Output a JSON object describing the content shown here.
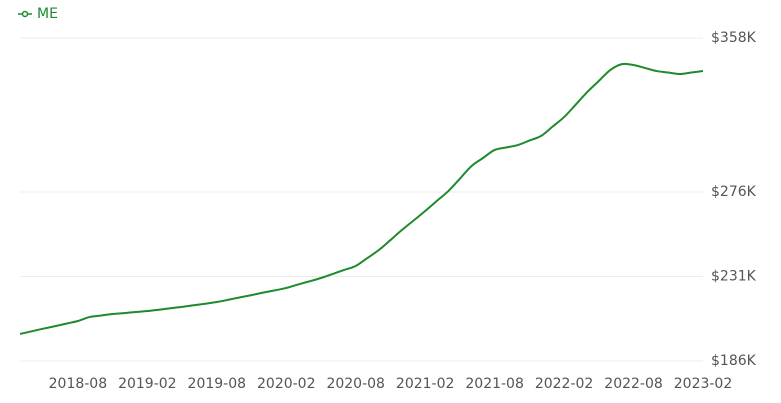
{
  "chart_data": {
    "type": "line",
    "categories": [
      null,
      null,
      null,
      null,
      null,
      "2018-08",
      null,
      null,
      null,
      null,
      null,
      "2019-02",
      null,
      null,
      null,
      null,
      null,
      "2019-08",
      null,
      null,
      null,
      null,
      null,
      "2020-02",
      null,
      null,
      null,
      null,
      null,
      "2020-08",
      null,
      null,
      null,
      null,
      null,
      "2021-02",
      null,
      null,
      null,
      null,
      null,
      "2021-08",
      null,
      null,
      null,
      null,
      null,
      "2022-02",
      null,
      null,
      null,
      null,
      null,
      "2022-08",
      null,
      null,
      null,
      null,
      null,
      "2023-02"
    ],
    "series": [
      {
        "name": "ME",
        "color": "#1e8a2e",
        "values": [
          200400,
          201800,
          203200,
          204500,
          205900,
          207300,
          209400,
          210200,
          211000,
          211500,
          212100,
          212600,
          213300,
          214100,
          214800,
          215700,
          216500,
          217400,
          218600,
          219900,
          221100,
          222400,
          223600,
          224900,
          226700,
          228400,
          230200,
          232300,
          234500,
          236600,
          240800,
          245100,
          250400,
          255800,
          260800,
          265900,
          271200,
          276500,
          283100,
          289800,
          294100,
          298400,
          299700,
          301000,
          303400,
          305800,
          310800,
          315900,
          322500,
          329200,
          335100,
          341000,
          344100,
          343600,
          342000,
          340400,
          339600,
          338800,
          339600,
          340400
        ]
      }
    ],
    "ylim": [
      186000,
      358000
    ],
    "yticks": [
      {
        "value": 186000,
        "label": "$186K"
      },
      {
        "value": 231000,
        "label": "$231K"
      },
      {
        "value": 276000,
        "label": "$276K"
      },
      {
        "value": 358000,
        "label": "$358K"
      }
    ],
    "grid": true
  }
}
